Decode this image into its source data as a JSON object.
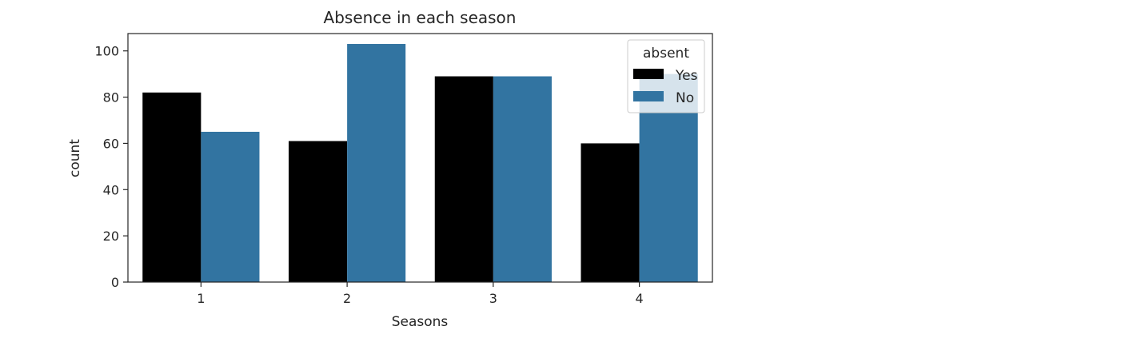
{
  "chart_data": {
    "type": "bar",
    "title": "Absence in each season",
    "xlabel": "Seasons",
    "ylabel": "count",
    "categories": [
      "1",
      "2",
      "3",
      "4"
    ],
    "series": [
      {
        "name": "Yes",
        "values": [
          82,
          61,
          89,
          60
        ],
        "color": "#000000"
      },
      {
        "name": "No",
        "values": [
          65,
          103,
          89,
          90
        ],
        "color": "#3274a1"
      }
    ],
    "ylim": [
      0,
      107.5
    ],
    "yticks": [
      0,
      20,
      40,
      60,
      80,
      100
    ],
    "grid": false,
    "legend": {
      "title": "absent",
      "placement": "top-right"
    }
  }
}
